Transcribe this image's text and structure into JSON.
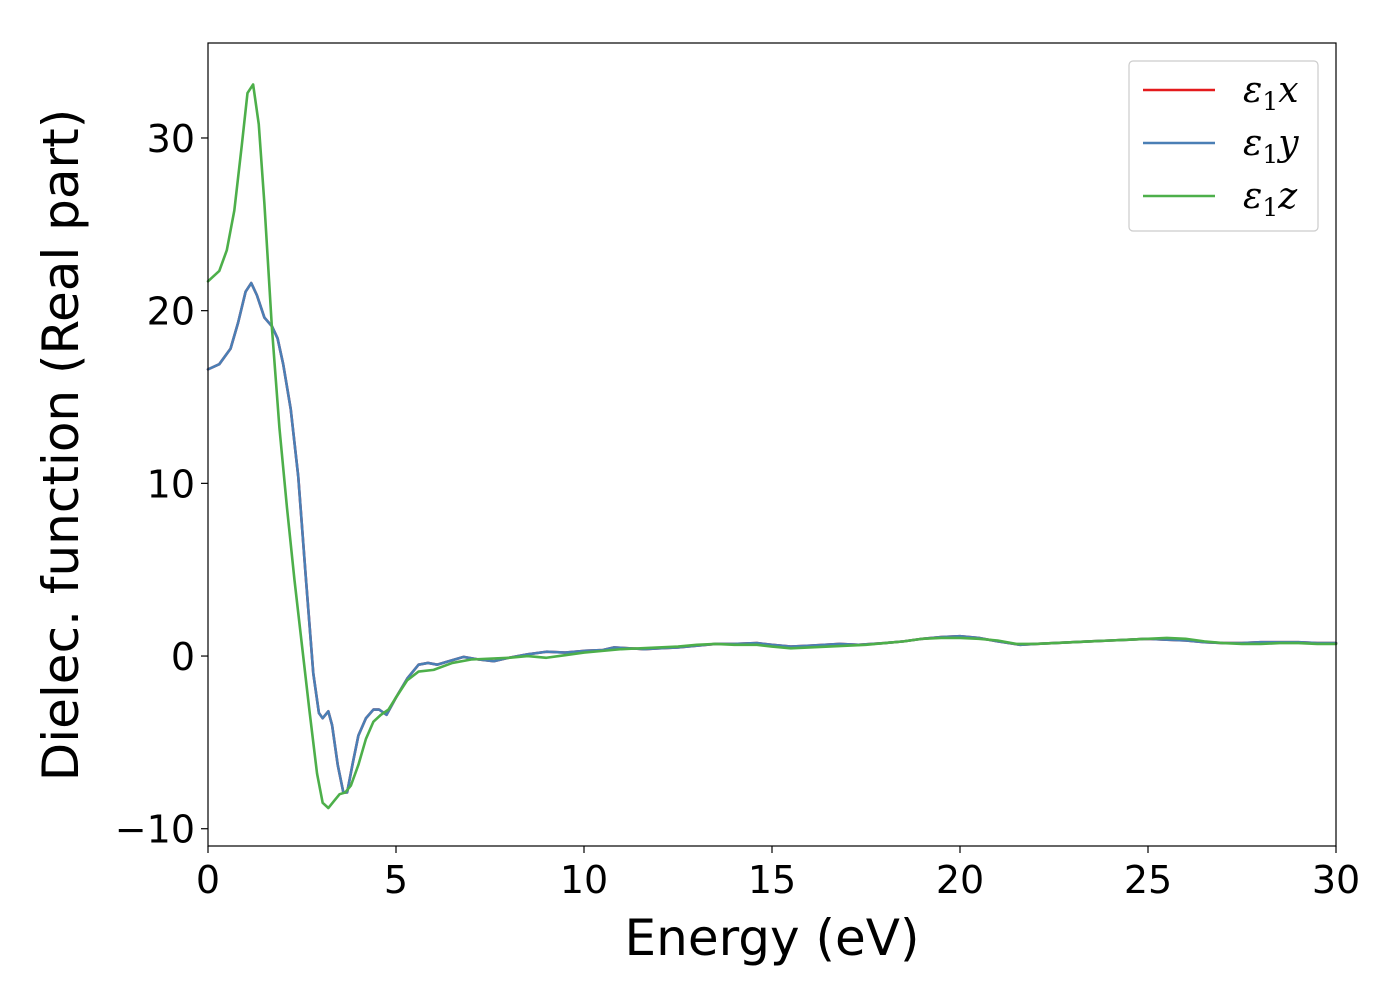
{
  "chart_data": {
    "type": "line",
    "title": "",
    "xlabel": "Energy (eV)",
    "ylabel": "Dielec. function (Real part)",
    "xlim": [
      0,
      30
    ],
    "ylim": [
      -11,
      35.5
    ],
    "xticks": [
      0,
      5,
      10,
      15,
      20,
      25,
      30
    ],
    "yticks": [
      -10,
      0,
      10,
      20,
      30
    ],
    "xtick_labels": [
      "0",
      "5",
      "10",
      "15",
      "20",
      "25",
      "30"
    ],
    "ytick_labels": [
      "−10",
      "0",
      "10",
      "20",
      "30"
    ],
    "grid": false,
    "legend_position": "top-right",
    "series": [
      {
        "legend_main": "ε",
        "legend_sub": "1",
        "legend_tail": "x",
        "color": "#e41a1c",
        "x": [
          0,
          0.3,
          0.6,
          0.8,
          1.0,
          1.15,
          1.3,
          1.5,
          1.7,
          1.85,
          2.0,
          2.2,
          2.4,
          2.6,
          2.8,
          2.95,
          3.05,
          3.2,
          3.3,
          3.45,
          3.6,
          3.7,
          3.85,
          4.0,
          4.2,
          4.4,
          4.55,
          4.75,
          5.0,
          5.3,
          5.6,
          5.85,
          6.1,
          6.4,
          6.8,
          7.2,
          7.6,
          8.0,
          8.5,
          9.0,
          9.5,
          10.0,
          10.5,
          10.8,
          11.2,
          11.6,
          12.0,
          12.5,
          13.0,
          13.5,
          14.0,
          14.6,
          15.0,
          15.5,
          16.0,
          16.8,
          17.3,
          18.0,
          18.5,
          19.0,
          19.5,
          20.0,
          20.5,
          21.0,
          21.6,
          22.0,
          22.5,
          23.0,
          23.5,
          24.0,
          24.5,
          25.0,
          25.5,
          26.0,
          26.5,
          27.0,
          27.5,
          28.0,
          28.5,
          29.0,
          29.5,
          30.0
        ],
        "y": [
          16.6,
          16.9,
          17.8,
          19.3,
          21.1,
          21.6,
          20.9,
          19.6,
          19.1,
          18.4,
          16.9,
          14.3,
          10.4,
          4.6,
          -1.0,
          -3.3,
          -3.6,
          -3.2,
          -4.0,
          -6.3,
          -7.9,
          -7.9,
          -6.2,
          -4.6,
          -3.6,
          -3.1,
          -3.1,
          -3.4,
          -2.4,
          -1.3,
          -0.5,
          -0.4,
          -0.5,
          -0.3,
          -0.05,
          -0.2,
          -0.3,
          -0.1,
          0.1,
          0.25,
          0.2,
          0.3,
          0.35,
          0.5,
          0.45,
          0.4,
          0.45,
          0.5,
          0.6,
          0.7,
          0.7,
          0.75,
          0.65,
          0.55,
          0.6,
          0.7,
          0.65,
          0.75,
          0.85,
          1.0,
          1.1,
          1.15,
          1.05,
          0.85,
          0.65,
          0.7,
          0.75,
          0.8,
          0.85,
          0.9,
          0.95,
          1.0,
          0.95,
          0.9,
          0.8,
          0.75,
          0.75,
          0.8,
          0.8,
          0.8,
          0.75,
          0.75
        ]
      },
      {
        "legend_main": "ε",
        "legend_sub": "1",
        "legend_tail": "y",
        "color": "#4a7fb5",
        "x": [
          0,
          0.3,
          0.6,
          0.8,
          1.0,
          1.15,
          1.3,
          1.5,
          1.7,
          1.85,
          2.0,
          2.2,
          2.4,
          2.6,
          2.8,
          2.95,
          3.05,
          3.2,
          3.3,
          3.45,
          3.6,
          3.7,
          3.85,
          4.0,
          4.2,
          4.4,
          4.55,
          4.75,
          5.0,
          5.3,
          5.6,
          5.85,
          6.1,
          6.4,
          6.8,
          7.2,
          7.6,
          8.0,
          8.5,
          9.0,
          9.5,
          10.0,
          10.5,
          10.8,
          11.2,
          11.6,
          12.0,
          12.5,
          13.0,
          13.5,
          14.0,
          14.6,
          15.0,
          15.5,
          16.0,
          16.8,
          17.3,
          18.0,
          18.5,
          19.0,
          19.5,
          20.0,
          20.5,
          21.0,
          21.6,
          22.0,
          22.5,
          23.0,
          23.5,
          24.0,
          24.5,
          25.0,
          25.5,
          26.0,
          26.5,
          27.0,
          27.5,
          28.0,
          28.5,
          29.0,
          29.5,
          30.0
        ],
        "y": [
          16.6,
          16.9,
          17.8,
          19.3,
          21.1,
          21.6,
          20.9,
          19.6,
          19.1,
          18.4,
          16.9,
          14.3,
          10.4,
          4.6,
          -1.0,
          -3.3,
          -3.6,
          -3.2,
          -4.0,
          -6.3,
          -7.9,
          -7.9,
          -6.2,
          -4.6,
          -3.6,
          -3.1,
          -3.1,
          -3.4,
          -2.4,
          -1.3,
          -0.5,
          -0.4,
          -0.5,
          -0.3,
          -0.05,
          -0.2,
          -0.3,
          -0.1,
          0.1,
          0.25,
          0.2,
          0.3,
          0.35,
          0.5,
          0.45,
          0.4,
          0.45,
          0.5,
          0.6,
          0.7,
          0.7,
          0.75,
          0.65,
          0.55,
          0.6,
          0.7,
          0.65,
          0.75,
          0.85,
          1.0,
          1.1,
          1.15,
          1.05,
          0.85,
          0.65,
          0.7,
          0.75,
          0.8,
          0.85,
          0.9,
          0.95,
          1.0,
          0.95,
          0.9,
          0.8,
          0.75,
          0.75,
          0.8,
          0.8,
          0.8,
          0.75,
          0.75
        ]
      },
      {
        "legend_main": "ε",
        "legend_sub": "1",
        "legend_tail": "z",
        "color": "#4daf4a",
        "x": [
          0,
          0.3,
          0.5,
          0.7,
          0.9,
          1.05,
          1.2,
          1.35,
          1.5,
          1.7,
          1.9,
          2.1,
          2.3,
          2.5,
          2.7,
          2.9,
          3.05,
          3.2,
          3.35,
          3.5,
          3.65,
          3.8,
          4.0,
          4.2,
          4.4,
          4.6,
          4.8,
          5.0,
          5.3,
          5.6,
          6.0,
          6.5,
          7.0,
          7.5,
          8.0,
          8.5,
          9.0,
          9.5,
          10.0,
          10.5,
          11.0,
          11.5,
          12.0,
          12.5,
          13.0,
          13.5,
          14.0,
          14.6,
          15.0,
          15.5,
          16.0,
          16.5,
          17.0,
          17.5,
          18.0,
          18.5,
          19.0,
          19.5,
          20.0,
          20.5,
          21.0,
          21.5,
          22.0,
          22.5,
          23.0,
          23.5,
          24.0,
          24.5,
          25.0,
          25.5,
          26.0,
          26.5,
          27.0,
          27.5,
          28.0,
          28.5,
          29.0,
          29.5,
          30.0
        ],
        "y": [
          21.7,
          22.3,
          23.5,
          25.8,
          29.6,
          32.6,
          33.1,
          30.8,
          26.2,
          19.0,
          13.2,
          8.6,
          4.4,
          0.6,
          -3.2,
          -6.8,
          -8.5,
          -8.8,
          -8.4,
          -8.0,
          -7.9,
          -7.5,
          -6.3,
          -4.8,
          -3.8,
          -3.4,
          -3.1,
          -2.4,
          -1.4,
          -0.9,
          -0.8,
          -0.4,
          -0.2,
          -0.15,
          -0.1,
          0.0,
          -0.1,
          0.05,
          0.2,
          0.3,
          0.4,
          0.45,
          0.5,
          0.55,
          0.65,
          0.7,
          0.65,
          0.65,
          0.55,
          0.45,
          0.5,
          0.55,
          0.6,
          0.65,
          0.75,
          0.85,
          1.0,
          1.05,
          1.05,
          1.0,
          0.9,
          0.7,
          0.7,
          0.75,
          0.8,
          0.85,
          0.9,
          0.95,
          1.0,
          1.05,
          1.0,
          0.85,
          0.75,
          0.7,
          0.7,
          0.75,
          0.75,
          0.7,
          0.7
        ]
      }
    ]
  }
}
